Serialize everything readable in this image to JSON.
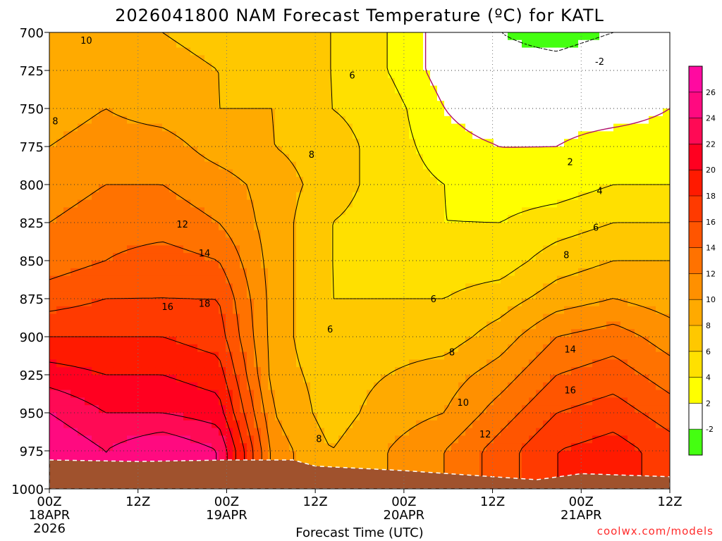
{
  "chart_data": {
    "type": "heatmap",
    "title": "2026041800 NAM Forecast Temperature (ºC) for KATL",
    "xlabel": "Forecast Time (UTC)",
    "ylabel": "",
    "credit": "coolwx.com/models",
    "x_hours": [
      0,
      12,
      24,
      36,
      48,
      60,
      72,
      84
    ],
    "x_ticks": [
      {
        "hour": 0,
        "label": "00Z",
        "date": "18APR",
        "year": "2026"
      },
      {
        "hour": 12,
        "label": "12Z",
        "date": "",
        "year": ""
      },
      {
        "hour": 24,
        "label": "00Z",
        "date": "19APR",
        "year": ""
      },
      {
        "hour": 36,
        "label": "12Z",
        "date": "",
        "year": ""
      },
      {
        "hour": 48,
        "label": "00Z",
        "date": "20APR",
        "year": ""
      },
      {
        "hour": 60,
        "label": "12Z",
        "date": "",
        "year": ""
      },
      {
        "hour": 72,
        "label": "00Z",
        "date": "21APR",
        "year": ""
      },
      {
        "hour": 84,
        "label": "12Z",
        "date": "",
        "year": ""
      }
    ],
    "pressure_levels": [
      700,
      725,
      750,
      775,
      800,
      825,
      850,
      875,
      900,
      925,
      950,
      975,
      1000
    ],
    "y_tick_labels": [
      "700",
      "725",
      "750",
      "775",
      "800",
      "825",
      "850",
      "875",
      "900",
      "925",
      "950",
      "975",
      "1000"
    ],
    "ylim": [
      700,
      1000
    ],
    "xlim": [
      0,
      84
    ],
    "colorbar": {
      "levels": [
        -4,
        -2,
        2,
        4,
        6,
        8,
        10,
        12,
        14,
        16,
        18,
        20,
        22,
        24,
        26,
        28
      ],
      "labels": [
        "-2",
        "2",
        "4",
        "6",
        "8",
        "10",
        "12",
        "14",
        "16",
        "18",
        "20",
        "22",
        "24",
        "26"
      ],
      "colors": [
        "#44ff11",
        "#ffffff",
        "#ffff00",
        "#ffe000",
        "#ffc800",
        "#ffaa00",
        "#ff9000",
        "#ff7200",
        "#ff5500",
        "#ff3a00",
        "#ff1a00",
        "#ff0020",
        "#ff0a55",
        "#ff0a80",
        "#ff0aa0"
      ]
    },
    "temperature_grid": [
      [
        8,
        9,
        8,
        7,
        7,
        6,
        4,
        1,
        -2,
        -3,
        -2,
        0
      ],
      [
        8,
        10,
        9,
        8,
        7,
        6,
        4,
        1,
        -1,
        -1,
        0,
        1
      ],
      [
        9,
        10,
        9,
        8,
        8,
        6,
        5,
        2,
        0,
        1,
        1,
        2
      ],
      [
        10,
        11,
        11,
        9,
        8,
        7,
        5,
        3,
        2,
        2,
        3,
        3
      ],
      [
        11,
        12,
        12,
        11,
        9,
        7,
        5,
        4,
        3,
        3,
        4,
        4
      ],
      [
        12,
        13,
        13,
        12,
        9,
        6,
        5,
        4,
        4,
        5,
        6,
        6
      ],
      [
        13,
        14,
        15,
        14,
        9,
        6,
        5,
        5,
        5,
        7,
        8,
        8
      ],
      [
        15,
        16,
        16,
        16,
        9,
        6,
        6,
        6,
        7,
        9,
        10,
        9
      ],
      [
        18,
        18,
        18,
        17,
        9,
        6,
        7,
        7,
        9,
        12,
        13,
        11
      ],
      [
        21,
        20,
        20,
        19,
        9,
        7,
        8,
        9,
        11,
        14,
        15,
        13
      ],
      [
        24,
        22,
        22,
        21,
        10,
        7,
        9,
        10,
        13,
        16,
        17,
        15
      ],
      [
        26,
        24,
        26,
        24,
        11,
        8,
        10,
        12,
        15,
        18,
        19,
        17
      ],
      [
        26,
        24,
        26,
        24,
        11,
        8,
        10,
        12,
        15,
        18,
        19,
        17
      ]
    ],
    "grid_hours": [
      0,
      7.6,
      15.3,
      22.9,
      30.5,
      38.2,
      45.8,
      53.5,
      61.1,
      68.7,
      76.4,
      84
    ],
    "contour_labels": [
      {
        "hour": 5,
        "p": 705,
        "text": "10"
      },
      {
        "hour": 0.8,
        "p": 758,
        "text": "8"
      },
      {
        "hour": 41,
        "p": 728,
        "text": "6"
      },
      {
        "hour": 35.5,
        "p": 780,
        "text": "8"
      },
      {
        "hour": 18,
        "p": 826,
        "text": "12"
      },
      {
        "hour": 21,
        "p": 845,
        "text": "14"
      },
      {
        "hour": 16,
        "p": 880,
        "text": "16"
      },
      {
        "hour": 21,
        "p": 878,
        "text": "18"
      },
      {
        "hour": 38,
        "p": 895,
        "text": "6"
      },
      {
        "hour": 52,
        "p": 875,
        "text": "6"
      },
      {
        "hour": 54.5,
        "p": 910,
        "text": "8"
      },
      {
        "hour": 56,
        "p": 943,
        "text": "10"
      },
      {
        "hour": 59,
        "p": 964,
        "text": "12"
      },
      {
        "hour": 36.5,
        "p": 967,
        "text": "8"
      },
      {
        "hour": 70.5,
        "p": 908,
        "text": "14"
      },
      {
        "hour": 70.5,
        "p": 935,
        "text": "16"
      },
      {
        "hour": 70.5,
        "p": 785,
        "text": "2"
      },
      {
        "hour": 74.5,
        "p": 804,
        "text": "4"
      },
      {
        "hour": 74,
        "p": 828,
        "text": "6"
      },
      {
        "hour": 70,
        "p": 846,
        "text": "8"
      },
      {
        "hour": 74.5,
        "p": 719,
        "text": "-2"
      }
    ],
    "terrain_color": "#a0522d",
    "surface_pressure_hours": [
      0,
      12,
      24,
      33,
      36,
      48,
      60,
      66,
      72,
      84
    ],
    "surface_pressure": [
      981,
      982,
      981,
      981,
      985,
      988,
      992,
      994,
      990,
      992
    ]
  }
}
